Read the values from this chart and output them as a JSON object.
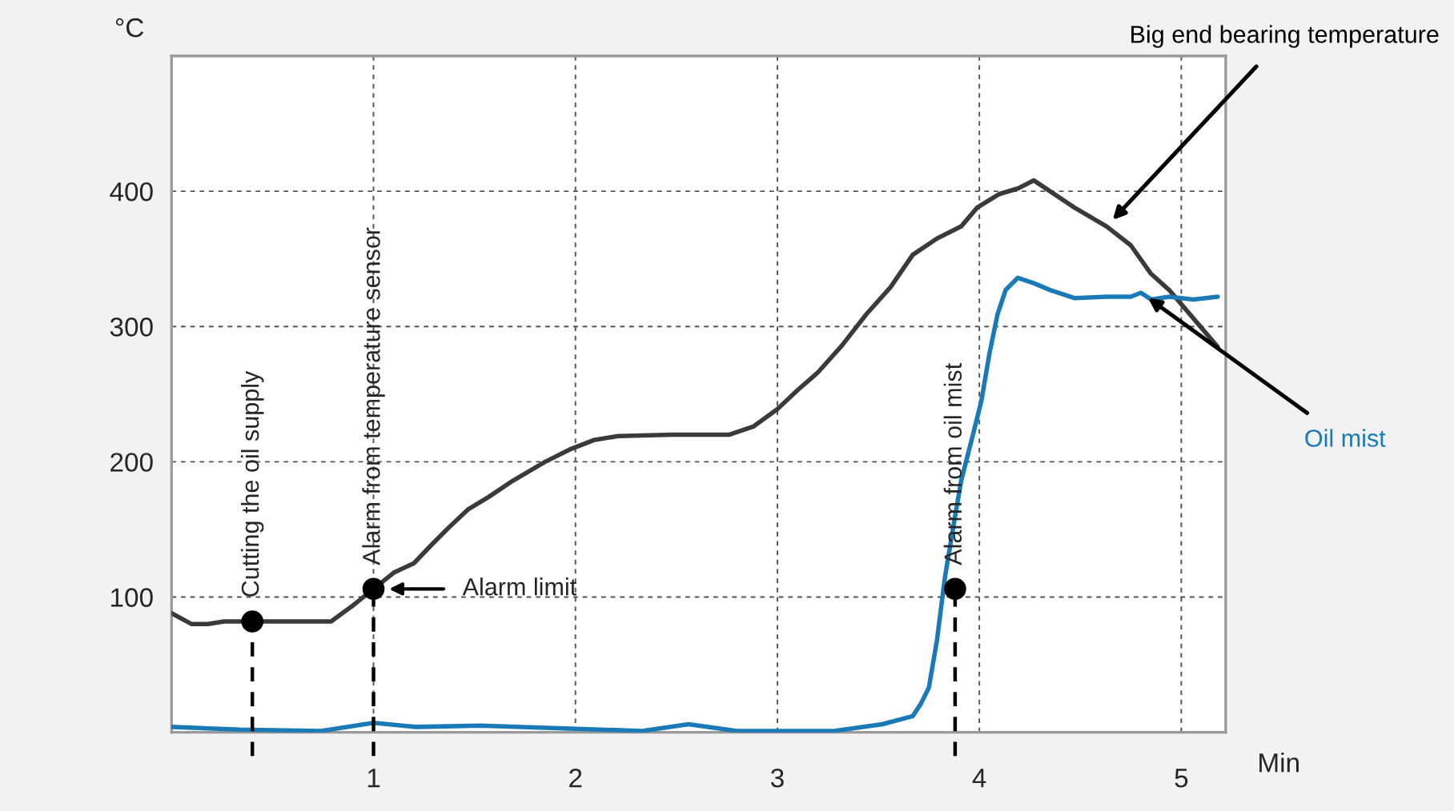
{
  "chart_data": {
    "type": "line",
    "xlabel": "Min",
    "ylabel": "°C",
    "xlim": [
      0,
      5.22
    ],
    "xticks": [
      1,
      2,
      3,
      4,
      5
    ],
    "ylim": [
      0,
      500
    ],
    "yticks": [
      100,
      200,
      300,
      400
    ],
    "grid": true,
    "legend": false,
    "line_style": "solid",
    "marker": "none",
    "series": [
      {
        "name": "Big end bearing temperature",
        "color": "#3a3a3a",
        "x": [
          0.0,
          0.1,
          0.18,
          0.26,
          0.42,
          0.79,
          0.9,
          1.0,
          1.1,
          1.2,
          1.29,
          1.37,
          1.47,
          1.57,
          1.69,
          1.85,
          1.97,
          2.09,
          2.21,
          2.48,
          2.76,
          2.88,
          3.0,
          3.1,
          3.2,
          3.32,
          3.44,
          3.56,
          3.67,
          3.79,
          3.91,
          3.99,
          4.1,
          4.19,
          4.27,
          4.35,
          4.47,
          4.63,
          4.75,
          4.85,
          4.94,
          5.06,
          5.18
        ],
        "values": [
          88,
          80,
          80,
          82,
          82,
          82,
          94,
          106,
          118,
          125,
          139,
          151,
          165,
          174,
          186,
          200,
          209,
          216,
          219,
          220,
          220,
          226,
          239,
          253,
          266,
          286,
          309,
          329,
          353,
          365,
          374,
          388,
          398,
          402,
          408,
          400,
          388,
          374,
          360,
          339,
          327,
          306,
          285
        ]
      },
      {
        "name": "Oil mist",
        "color": "#1a7ab8",
        "x": [
          0.0,
          0.34,
          0.74,
          1.0,
          1.21,
          1.53,
          2.33,
          2.56,
          2.8,
          3.28,
          3.52,
          3.67,
          3.71,
          3.75,
          3.79,
          3.83,
          3.87,
          3.91,
          3.97,
          4.01,
          4.05,
          4.09,
          4.13,
          4.19,
          4.27,
          4.35,
          4.47,
          4.63,
          4.75,
          4.8,
          4.85,
          4.94,
          5.06,
          5.18
        ],
        "values": [
          4,
          2,
          1,
          7,
          4,
          5,
          1,
          6,
          1,
          1,
          6,
          12,
          21,
          33,
          68,
          115,
          151,
          186,
          221,
          245,
          280,
          309,
          327,
          336,
          332,
          327,
          321,
          322,
          322,
          325,
          320,
          322,
          320,
          322
        ]
      },
      {
        "type": "scatter",
        "color": "#000000",
        "marker": "circle",
        "x": [
          0.4,
          1.0,
          3.88
        ],
        "values": [
          82,
          106,
          106
        ]
      }
    ],
    "ref_lines": [
      {
        "axis": "x",
        "value": 0.4,
        "label": "Cutting the oil supply",
        "color": "#000000",
        "line_style": "dashed"
      },
      {
        "axis": "x",
        "value": 1.0,
        "label": "Alarm from temperature sensor",
        "color": "#000000",
        "line_style": "dashed"
      },
      {
        "axis": "x",
        "value": 3.88,
        "label": "Alarm from oil mist",
        "color": "#000000",
        "line_style": "dashed"
      }
    ],
    "annotations": [
      "Alarm limit"
    ]
  }
}
